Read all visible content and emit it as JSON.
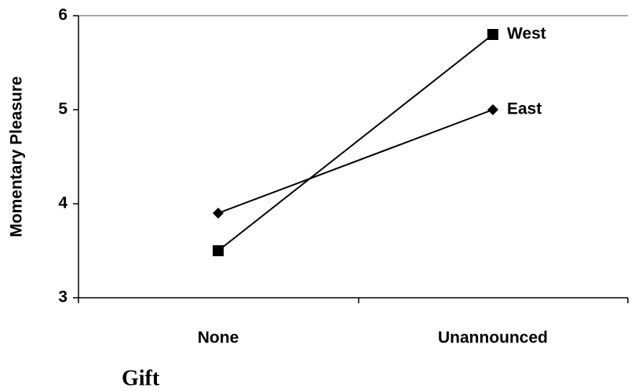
{
  "chart_data": {
    "type": "line",
    "xlabel": "Gift",
    "ylabel": "Momentary Pleasure",
    "categories": [
      "None",
      "Unannounced"
    ],
    "series": [
      {
        "name": "West",
        "color": "#000000",
        "marker": "square",
        "values": [
          3.5,
          5.8
        ]
      },
      {
        "name": "East",
        "color": "#000000",
        "marker": "diamond",
        "values": [
          3.9,
          5.0
        ]
      }
    ],
    "ylim": [
      3,
      6
    ],
    "yticks": [
      3,
      4,
      5,
      6
    ],
    "grid": false
  }
}
